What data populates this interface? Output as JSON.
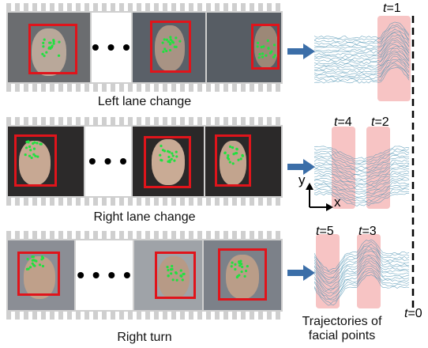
{
  "rows": [
    {
      "caption": "Left lane change",
      "ellipsis": "• • •",
      "labels": [
        {
          "t": "t",
          "n": "=1"
        }
      ]
    },
    {
      "caption": "Right lane change",
      "ellipsis": "• • •",
      "labels": [
        {
          "t": "t",
          "n": "=4"
        },
        {
          "t": "t",
          "n": "=2"
        }
      ]
    },
    {
      "caption": "Right turn",
      "ellipsis": "• • • •",
      "labels": [
        {
          "t": "t",
          "n": "=5"
        },
        {
          "t": "t",
          "n": "=3"
        }
      ]
    }
  ],
  "axes": {
    "y": "y",
    "x": "x"
  },
  "time_zero": {
    "t": "t",
    "n": "=0"
  },
  "trajectories_label": [
    "Trajectories of",
    "facial points"
  ],
  "colors": {
    "box": "#e0141b",
    "arrow": "#3b6ea8",
    "trace": "#4f94b3",
    "highlight": "#f7c4c4"
  }
}
